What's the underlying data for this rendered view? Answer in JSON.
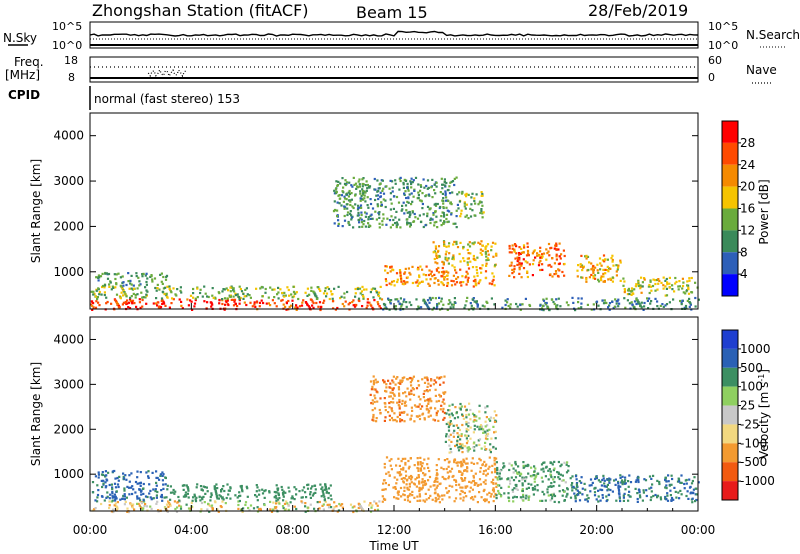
{
  "header": {
    "station": "Zhongshan Station (fitACF)",
    "beam": "Beam 15",
    "date": "28/Feb/2019"
  },
  "top_panels": {
    "nsky_label": "N.Sky",
    "nsky_ticks": [
      "10^5",
      "10^0"
    ],
    "nsearch_label": "N.Search",
    "nsearch_ticks": [
      "10^5",
      "10^0"
    ],
    "freq_label": "Freq.",
    "freq_unit": "[MHz]",
    "freq_ticks": [
      "18",
      "8"
    ],
    "nave_label": "Nave",
    "nave_ticks": [
      "60",
      "0"
    ],
    "cpid_label": "CPID",
    "cpid_text": "normal (fast stereo) 153"
  },
  "axes": {
    "ylabel": "Slant Range [km]",
    "yticks": [
      "4000",
      "3000",
      "2000",
      "1000"
    ],
    "xlabel": "Time UT",
    "xticks": [
      "00:00",
      "04:00",
      "08:00",
      "12:00",
      "16:00",
      "20:00",
      "00:00"
    ]
  },
  "power_scale": {
    "label": "Power [dB]",
    "ticks": [
      "28",
      "24",
      "20",
      "16",
      "12",
      "8",
      "4"
    ],
    "colors": [
      "#ff0000",
      "#ff4a00",
      "#f58a00",
      "#f5c400",
      "#6aab3c",
      "#3a8a5a",
      "#2d5fb8",
      "#0000ff"
    ]
  },
  "velocity_scale": {
    "label": "Velocity [m s",
    "label_sup": "-1",
    "label_end": "]",
    "ticks": [
      "1000",
      "500",
      "100",
      "25",
      "-25",
      "-100",
      "-500",
      "-1000"
    ],
    "colors": [
      "#1f3fd0",
      "#2a61b5",
      "#3c8f62",
      "#8fd060",
      "#c8c8c8",
      "#f2d880",
      "#f39a30",
      "#f25a10",
      "#e81b1b"
    ]
  },
  "chart_data": [
    {
      "type": "heatmap",
      "name": "power",
      "xlabel": "Time UT",
      "ylabel": "Slant Range [km]",
      "xlim": [
        0,
        24
      ],
      "ylim": [
        180,
        4500
      ],
      "colorbar": "Power [dB]",
      "clim": [
        0,
        30
      ],
      "regions": [
        {
          "t": [
            0.0,
            11.5
          ],
          "r": [
            180,
            420
          ],
          "value": 26
        },
        {
          "t": [
            0.0,
            11.5
          ],
          "r": [
            420,
            700
          ],
          "value": 12
        },
        {
          "t": [
            0.2,
            3.0
          ],
          "r": [
            700,
            1000
          ],
          "value": 9
        },
        {
          "t": [
            11.5,
            24.0
          ],
          "r": [
            180,
            450
          ],
          "value": 8
        },
        {
          "t": [
            11.5,
            16.0
          ],
          "r": [
            700,
            1150
          ],
          "value": 20
        },
        {
          "t": [
            13.5,
            16.0
          ],
          "r": [
            1150,
            1700
          ],
          "value": 16
        },
        {
          "t": [
            16.5,
            18.7
          ],
          "r": [
            900,
            1650
          ],
          "value": 22
        },
        {
          "t": [
            19.2,
            21.0
          ],
          "r": [
            800,
            1400
          ],
          "value": 18
        },
        {
          "t": [
            21.0,
            24.0
          ],
          "r": [
            500,
            900
          ],
          "value": 14
        },
        {
          "t": [
            9.5,
            14.5
          ],
          "r": [
            2000,
            3100
          ],
          "value": 9
        },
        {
          "t": [
            14.5,
            15.5
          ],
          "r": [
            2200,
            2800
          ],
          "value": 12
        }
      ]
    },
    {
      "type": "heatmap",
      "name": "velocity",
      "xlabel": "Time UT",
      "ylabel": "Slant Range [km]",
      "xlim": [
        0,
        24
      ],
      "ylim": [
        180,
        4500
      ],
      "colorbar": "Velocity [m s-1]",
      "clim": [
        -1000,
        1000
      ],
      "regions": [
        {
          "t": [
            0.0,
            11.5
          ],
          "r": [
            180,
            420
          ],
          "value": -50
        },
        {
          "t": [
            0.0,
            3.0
          ],
          "r": [
            420,
            1100
          ],
          "value": 600
        },
        {
          "t": [
            3.0,
            9.5
          ],
          "r": [
            420,
            800
          ],
          "value": 300
        },
        {
          "t": [
            11.5,
            16.0
          ],
          "r": [
            400,
            1400
          ],
          "value": -300
        },
        {
          "t": [
            16.0,
            19.0
          ],
          "r": [
            400,
            1300
          ],
          "value": 200
        },
        {
          "t": [
            19.0,
            24.0
          ],
          "r": [
            400,
            1000
          ],
          "value": 500
        },
        {
          "t": [
            11.0,
            14.0
          ],
          "r": [
            2200,
            3200
          ],
          "value": -400
        },
        {
          "t": [
            14.0,
            16.0
          ],
          "r": [
            1500,
            2600
          ],
          "value": 50
        }
      ]
    }
  ]
}
